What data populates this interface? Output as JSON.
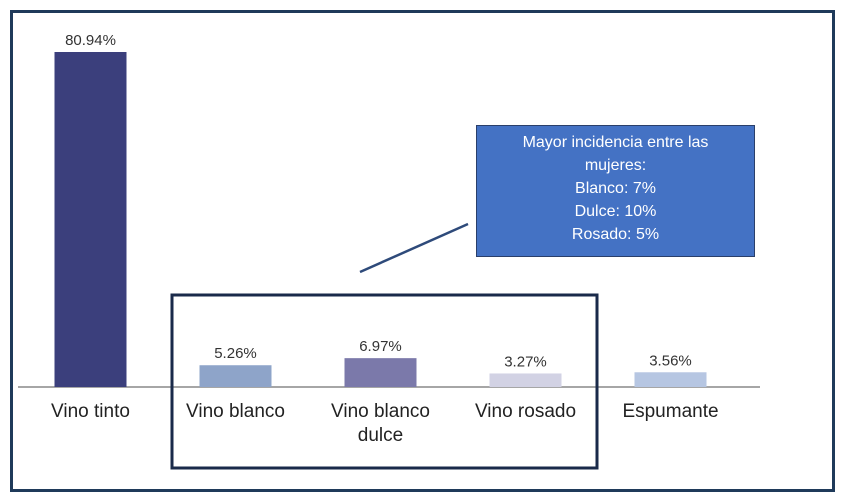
{
  "chart_data": {
    "type": "bar",
    "categories": [
      "Vino tinto",
      "Vino blanco",
      "Vino blanco dulce",
      "Vino rosado",
      "Espumante"
    ],
    "values": [
      80.94,
      5.26,
      6.97,
      3.27,
      3.56
    ],
    "value_labels": [
      "80.94%",
      "5.26%",
      "6.97%",
      "3.27%",
      "3.56%"
    ],
    "colors": [
      "#3b3f7c",
      "#8ea4c9",
      "#7b79aa",
      "#d2d2e4",
      "#b6c6e2"
    ],
    "annotation": [
      "Mayor incidencia entre las",
      "mujeres:",
      "Blanco: 7%",
      "Dulce: 10%",
      "Rosado: 5%"
    ]
  }
}
